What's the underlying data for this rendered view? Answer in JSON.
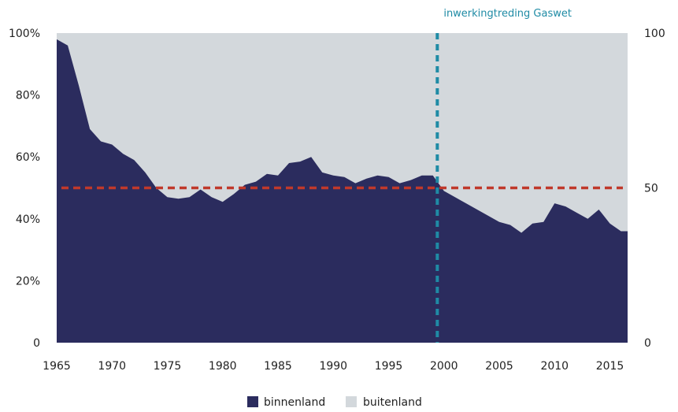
{
  "chart_data": {
    "type": "area",
    "annotation": "inwerkingtreding Gaswet",
    "x": [
      1965,
      1966,
      1967,
      1968,
      1969,
      1970,
      1971,
      1972,
      1973,
      1974,
      1975,
      1976,
      1977,
      1978,
      1979,
      1980,
      1981,
      1982,
      1983,
      1984,
      1985,
      1986,
      1987,
      1988,
      1989,
      1990,
      1991,
      1992,
      1993,
      1994,
      1995,
      1996,
      1997,
      1998,
      1999,
      2000,
      2001,
      2002,
      2003,
      2004,
      2005,
      2006,
      2007,
      2008,
      2009,
      2010,
      2011,
      2012,
      2013,
      2014,
      2015,
      2016
    ],
    "series": [
      {
        "name": "binnenland",
        "color": "#2b2c5e",
        "values": [
          98,
          96,
          83,
          69,
          65,
          64,
          61,
          59,
          55,
          50,
          47,
          46.5,
          47,
          49.5,
          47,
          45.5,
          48,
          51,
          52,
          54.5,
          54,
          58,
          58.5,
          60,
          55,
          54,
          53.5,
          51.5,
          53,
          54,
          53.5,
          51.5,
          52.5,
          54,
          54,
          49,
          47,
          45,
          43,
          41,
          39,
          38,
          35.5,
          38.5,
          39,
          45,
          44,
          42,
          40,
          43,
          38.5,
          36
        ]
      },
      {
        "name": "buitenland",
        "color": "#d3d8dc"
      }
    ],
    "reference_lines": {
      "horizontal_value": 50,
      "horizontal_color": "#c0392b",
      "vertical_year": 1999.4,
      "vertical_color": "#1f8ba5"
    },
    "x_ticks": [
      "1965",
      "1970",
      "1975",
      "1980",
      "1985",
      "1990",
      "1995",
      "2000",
      "2005",
      "2010",
      "2015"
    ],
    "y_ticks_left": [
      "0",
      "20%",
      "40%",
      "60%",
      "80%",
      "100%"
    ],
    "y_ticks_right": [
      "0",
      "50",
      "100"
    ],
    "ylim": [
      0,
      100
    ],
    "xlim": [
      1965,
      2016.6
    ],
    "legend": [
      "binnenland",
      "buitenland"
    ],
    "legend_position": "bottom-center"
  }
}
